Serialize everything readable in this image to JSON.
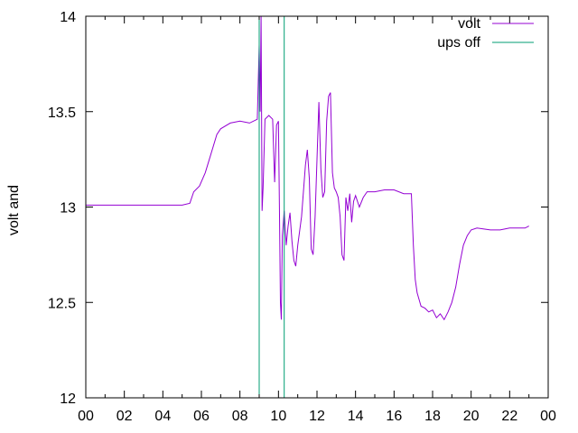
{
  "chart_data": {
    "type": "line",
    "title": "",
    "xlabel": "",
    "ylabel": "volt and",
    "xlim": [
      0,
      24
    ],
    "ylim": [
      12,
      14
    ],
    "x_ticks": [
      "00",
      "02",
      "04",
      "06",
      "08",
      "10",
      "12",
      "14",
      "16",
      "18",
      "20",
      "22",
      "00"
    ],
    "y_ticks": [
      "12",
      "12.5",
      "13",
      "13.5",
      "14"
    ],
    "grid": false,
    "legend_position": "top-right",
    "series": [
      {
        "name": "volt",
        "color": "#9400d3",
        "points": [
          [
            0.0,
            13.01
          ],
          [
            1.0,
            13.01
          ],
          [
            2.0,
            13.01
          ],
          [
            3.0,
            13.01
          ],
          [
            4.0,
            13.01
          ],
          [
            5.0,
            13.01
          ],
          [
            5.4,
            13.02
          ],
          [
            5.6,
            13.08
          ],
          [
            5.9,
            13.11
          ],
          [
            6.2,
            13.18
          ],
          [
            6.5,
            13.28
          ],
          [
            6.8,
            13.38
          ],
          [
            7.0,
            13.41
          ],
          [
            7.5,
            13.44
          ],
          [
            8.0,
            13.45
          ],
          [
            8.5,
            13.44
          ],
          [
            8.9,
            13.46
          ],
          [
            9.0,
            13.85
          ],
          [
            9.05,
            13.5
          ],
          [
            9.1,
            14.0
          ],
          [
            9.15,
            12.98
          ],
          [
            9.2,
            13.1
          ],
          [
            9.3,
            13.46
          ],
          [
            9.5,
            13.48
          ],
          [
            9.7,
            13.46
          ],
          [
            9.8,
            13.13
          ],
          [
            9.9,
            13.43
          ],
          [
            10.0,
            13.45
          ],
          [
            10.05,
            13.0
          ],
          [
            10.1,
            12.5
          ],
          [
            10.15,
            12.41
          ],
          [
            10.2,
            12.85
          ],
          [
            10.3,
            12.98
          ],
          [
            10.4,
            12.8
          ],
          [
            10.5,
            12.9
          ],
          [
            10.6,
            12.97
          ],
          [
            10.7,
            12.82
          ],
          [
            10.8,
            12.72
          ],
          [
            10.9,
            12.69
          ],
          [
            11.0,
            12.8
          ],
          [
            11.2,
            12.95
          ],
          [
            11.4,
            13.22
          ],
          [
            11.5,
            13.3
          ],
          [
            11.6,
            13.15
          ],
          [
            11.7,
            12.78
          ],
          [
            11.8,
            12.75
          ],
          [
            11.9,
            12.95
          ],
          [
            12.0,
            13.25
          ],
          [
            12.1,
            13.55
          ],
          [
            12.2,
            13.2
          ],
          [
            12.3,
            13.05
          ],
          [
            12.4,
            13.08
          ],
          [
            12.5,
            13.45
          ],
          [
            12.6,
            13.58
          ],
          [
            12.7,
            13.6
          ],
          [
            12.8,
            13.18
          ],
          [
            12.9,
            13.1
          ],
          [
            13.0,
            13.08
          ],
          [
            13.1,
            13.05
          ],
          [
            13.2,
            12.95
          ],
          [
            13.3,
            12.75
          ],
          [
            13.4,
            12.72
          ],
          [
            13.5,
            13.05
          ],
          [
            13.6,
            12.98
          ],
          [
            13.7,
            13.07
          ],
          [
            13.8,
            12.92
          ],
          [
            13.9,
            13.03
          ],
          [
            14.0,
            13.06
          ],
          [
            14.2,
            13.0
          ],
          [
            14.4,
            13.05
          ],
          [
            14.6,
            13.08
          ],
          [
            15.0,
            13.08
          ],
          [
            15.5,
            13.09
          ],
          [
            16.0,
            13.09
          ],
          [
            16.5,
            13.07
          ],
          [
            16.9,
            13.07
          ],
          [
            17.0,
            12.8
          ],
          [
            17.1,
            12.62
          ],
          [
            17.2,
            12.55
          ],
          [
            17.4,
            12.48
          ],
          [
            17.6,
            12.47
          ],
          [
            17.8,
            12.45
          ],
          [
            18.0,
            12.46
          ],
          [
            18.2,
            12.42
          ],
          [
            18.4,
            12.44
          ],
          [
            18.6,
            12.41
          ],
          [
            18.8,
            12.45
          ],
          [
            19.0,
            12.5
          ],
          [
            19.2,
            12.58
          ],
          [
            19.4,
            12.7
          ],
          [
            19.6,
            12.8
          ],
          [
            19.8,
            12.85
          ],
          [
            20.0,
            12.88
          ],
          [
            20.3,
            12.89
          ],
          [
            21.0,
            12.88
          ],
          [
            21.5,
            12.88
          ],
          [
            22.0,
            12.89
          ],
          [
            22.5,
            12.89
          ],
          [
            22.8,
            12.89
          ],
          [
            23.0,
            12.9
          ]
        ]
      },
      {
        "name": "ups off",
        "color": "#009e73",
        "points": [
          [
            9.0,
            12.0
          ],
          [
            9.0,
            14.0
          ],
          [
            10.3,
            14.0
          ],
          [
            10.3,
            12.0
          ]
        ]
      }
    ]
  }
}
